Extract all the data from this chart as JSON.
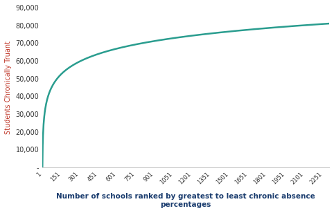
{
  "title": "",
  "xlabel": "Number of schools ranked by greatest to least chronic absence\npercentages",
  "ylabel": "Students Chronically Truant",
  "line_color": "#2a9d8f",
  "ylabel_color": "#c0392b",
  "background_color": "#ffffff",
  "x_tick_labels": [
    "1",
    "151",
    "301",
    "451",
    "601",
    "751",
    "901",
    "1051",
    "1201",
    "1351",
    "1501",
    "1651",
    "1801",
    "1951",
    "2101",
    "2251"
  ],
  "x_tick_values": [
    1,
    151,
    301,
    451,
    601,
    751,
    901,
    1051,
    1201,
    1351,
    1501,
    1651,
    1801,
    1951,
    2101,
    2251
  ],
  "ylim": [
    0,
    90000
  ],
  "y_ticks": [
    0,
    10000,
    20000,
    30000,
    40000,
    50000,
    60000,
    70000,
    80000,
    90000
  ],
  "y_tick_labels": [
    "-",
    "10,000",
    "20,000",
    "30,000",
    "40,000",
    "50,000",
    "60,000",
    "70,000",
    "80,000",
    "90,000"
  ],
  "total_students": 81000,
  "num_schools": 2300,
  "alpha": 0.22
}
